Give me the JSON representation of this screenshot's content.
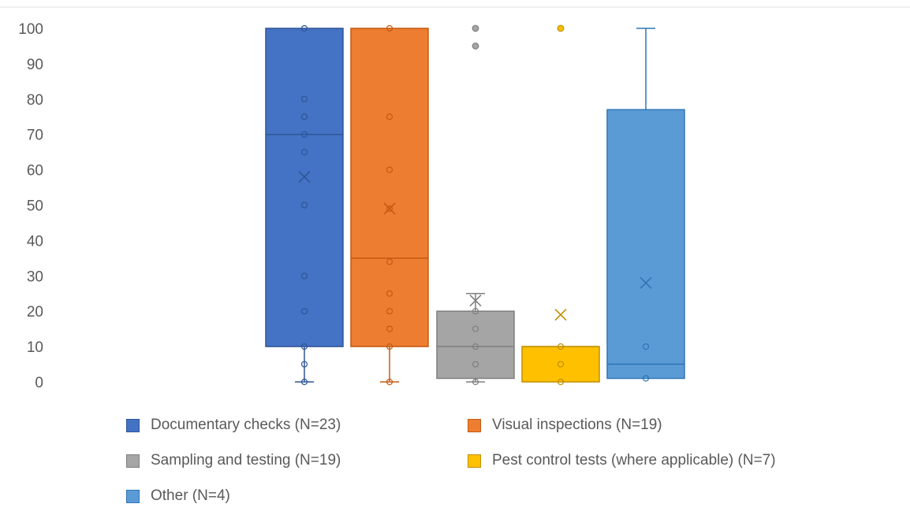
{
  "chart_data": {
    "type": "boxplot",
    "y_ticks": [
      0,
      10,
      20,
      30,
      40,
      50,
      60,
      70,
      80,
      90,
      100
    ],
    "ylim": [
      0,
      100
    ],
    "grid": false,
    "legend_position": "bottom",
    "series": [
      {
        "name": "Documentary checks (N=23)",
        "color": "#4472C4",
        "edge": "#2F5597",
        "min": 0,
        "q1": 10,
        "median": 70,
        "q3": 100,
        "max": 100,
        "mean": 58,
        "points": [
          100,
          80,
          75,
          70,
          65,
          50,
          30,
          20,
          10,
          5,
          0
        ],
        "outliers": []
      },
      {
        "name": "Visual inspections (N=19)",
        "color": "#ED7D31",
        "edge": "#C55A11",
        "min": 0,
        "q1": 10,
        "median": 35,
        "q3": 100,
        "max": 100,
        "mean": 49,
        "points": [
          100,
          75,
          60,
          49,
          34,
          25,
          20,
          15,
          10,
          0
        ],
        "outliers": []
      },
      {
        "name": "Sampling and testing (N=19)",
        "color": "#A5A5A5",
        "edge": "#7F7F7F",
        "min": 0,
        "q1": 1,
        "median": 10,
        "q3": 20,
        "max": 25,
        "mean": 23,
        "points": [
          20,
          15,
          10,
          5,
          0
        ],
        "outliers": [
          100,
          95
        ]
      },
      {
        "name": "Pest control tests (where applicable) (N=7)",
        "color": "#FFC000",
        "edge": "#BF9000",
        "min": 0,
        "q1": 0,
        "median": 10,
        "q3": 10,
        "max": 10,
        "mean": 19,
        "points": [
          10,
          5,
          0
        ],
        "outliers": [
          100
        ]
      },
      {
        "name": "Other (N=4)",
        "color": "#5B9BD5",
        "edge": "#2E75B6",
        "min": 1,
        "q1": 1,
        "median": 5,
        "q3": 77,
        "max": 100,
        "mean": 28,
        "points": [
          10,
          1
        ],
        "outliers": []
      }
    ]
  }
}
